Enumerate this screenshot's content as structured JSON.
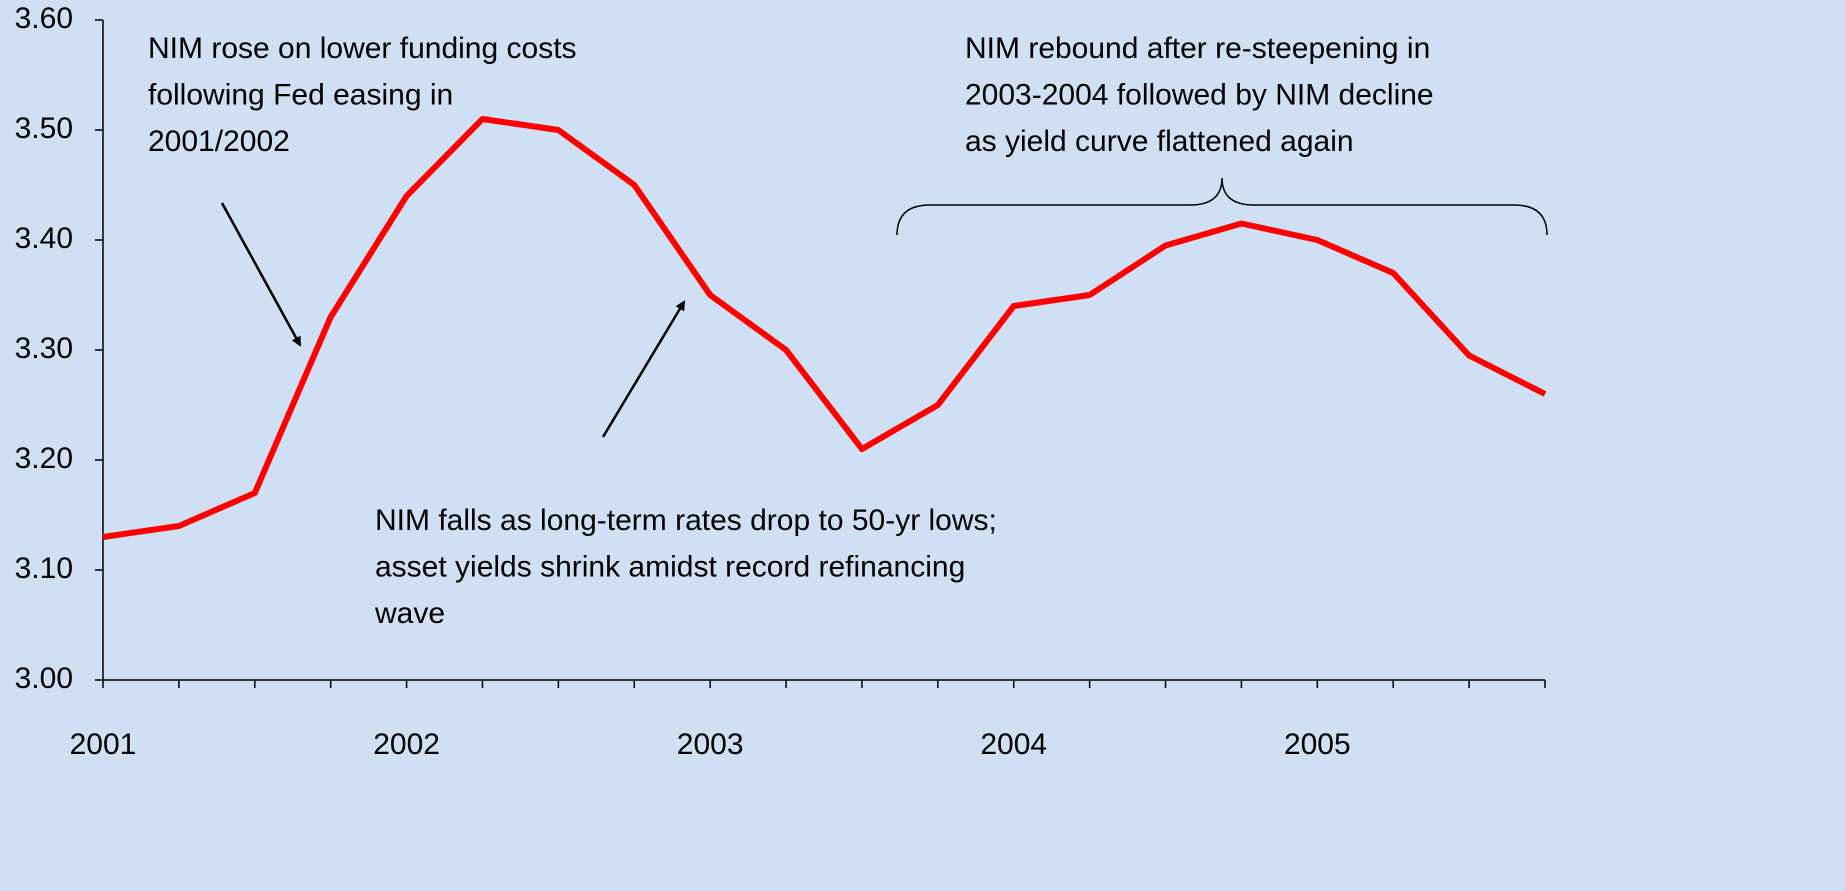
{
  "chart_data": {
    "type": "line",
    "categories": [
      "2001",
      null,
      null,
      null,
      "2002",
      null,
      null,
      null,
      "2003",
      null,
      null,
      null,
      "2004",
      null,
      null,
      null,
      "2005",
      null,
      null,
      null
    ],
    "series": [
      {
        "color": "#ff0000",
        "values": [
          3.13,
          3.14,
          3.17,
          3.33,
          3.44,
          3.51,
          3.5,
          3.45,
          3.35,
          3.3,
          3.21,
          3.25,
          3.34,
          3.35,
          3.395,
          3.415,
          3.4,
          3.37,
          3.295,
          3.26
        ]
      }
    ],
    "ylim": [
      3.0,
      3.6
    ],
    "yticks": [
      {
        "value": 3.0,
        "label": "3.00"
      },
      {
        "value": 3.1,
        "label": "3.10"
      },
      {
        "value": 3.2,
        "label": "3.20"
      },
      {
        "value": 3.3,
        "label": "3.30"
      },
      {
        "value": 3.4,
        "label": "3.40"
      },
      {
        "value": 3.5,
        "label": "3.50"
      },
      {
        "value": 3.6,
        "label": "3.60"
      }
    ],
    "grid": false,
    "annotations": [
      [
        "NIM rose on lower funding costs",
        "following Fed easing in",
        "2001/2002"
      ],
      [
        "NIM falls as long-term rates drop to 50-yr lows;",
        "asset yields shrink amidst record refinancing",
        "wave"
      ],
      [
        "NIM rebound after re-steepening in",
        "2003-2004 followed by NIM decline",
        "as yield curve flattened again"
      ]
    ]
  }
}
